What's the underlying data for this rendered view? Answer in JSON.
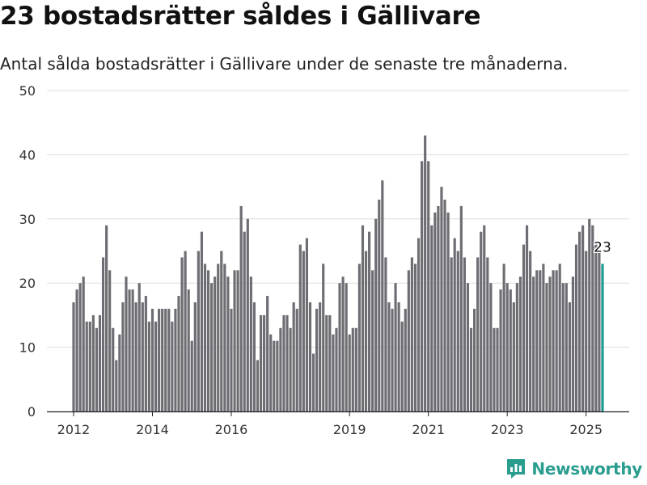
{
  "chart_data": {
    "type": "bar",
    "title": "23 bostadsrätter såldes i Gällivare",
    "subtitle": "Antal sålda bostadsrätter i Gällivare under de senaste tre månaderna.",
    "x_tick_labels": [
      "2012",
      "2014",
      "2016",
      "2019",
      "2021",
      "2023",
      "2025"
    ],
    "y_tick_labels": [
      "0",
      "10",
      "20",
      "30",
      "40",
      "50"
    ],
    "ylim": [
      0,
      50
    ],
    "grid": true,
    "legend": "none",
    "series": [
      {
        "values": [
          17,
          19,
          20,
          21,
          14,
          14,
          15,
          13,
          15,
          24,
          29,
          22,
          13,
          8,
          12,
          17,
          21,
          19,
          19,
          17,
          20,
          17,
          18,
          14,
          16,
          14,
          16,
          16,
          16,
          16,
          14,
          16,
          18,
          24,
          25,
          19,
          11,
          17,
          25,
          28,
          23,
          22,
          20,
          21,
          23,
          25,
          23,
          21,
          16,
          22,
          22,
          32,
          28,
          30,
          21,
          17,
          8,
          15,
          15,
          18,
          12,
          11,
          11,
          13,
          15,
          15,
          13,
          17,
          16,
          26,
          25,
          27,
          17,
          9,
          16,
          17,
          23,
          15,
          15,
          12,
          13,
          20,
          21,
          20,
          12,
          13,
          13,
          23,
          29,
          25,
          28,
          22,
          30,
          33,
          36,
          24,
          17,
          16,
          20,
          17,
          14,
          16,
          22,
          24,
          23,
          27,
          39,
          43,
          39,
          29,
          31,
          32,
          35,
          33,
          31,
          24,
          27,
          25,
          32,
          24,
          20,
          13,
          16,
          24,
          28,
          29,
          24,
          20,
          13,
          13,
          19,
          23,
          20,
          19,
          17,
          20,
          21,
          26,
          29,
          25,
          21,
          22,
          22,
          23,
          20,
          21,
          22,
          22,
          23,
          20,
          20,
          17,
          21,
          26,
          28,
          29,
          25,
          30,
          29,
          26,
          25,
          23
        ],
        "color": "#6e6d73"
      }
    ],
    "highlight": {
      "index": 161,
      "value": 23,
      "label": "23",
      "color": "#1a9a8e"
    }
  },
  "branding": {
    "name": "Newsworthy",
    "logo_icon": "newsworthy-chart-logo-icon",
    "color": "#2a9d8f"
  }
}
